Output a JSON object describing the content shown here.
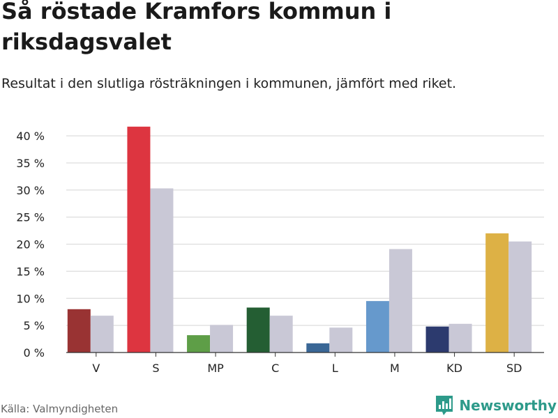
{
  "title": "Så röstade Kramfors kommun i riksdagsvalet",
  "subtitle": "Resultat i den slutliga rösträkningen i kommunen, jämfört med riket.",
  "source": "Källa: Valmyndigheten",
  "brand": "Newsworthy",
  "colors": {
    "brand": "#2d9a8a",
    "grid": "#dddddd",
    "axis": "#333333",
    "national": "#c9c8d6"
  },
  "chart_data": {
    "type": "bar",
    "categories": [
      "V",
      "S",
      "MP",
      "C",
      "L",
      "M",
      "KD",
      "SD"
    ],
    "series": [
      {
        "name": "Kramfors kommun",
        "values": [
          8.0,
          41.7,
          3.2,
          8.3,
          1.7,
          9.5,
          4.8,
          22.0
        ],
        "colors": [
          "#993333",
          "#dd3540",
          "#5e9e47",
          "#245e33",
          "#3a6796",
          "#6699cc",
          "#2c3a6e",
          "#ddb145"
        ]
      },
      {
        "name": "Riket",
        "values": [
          6.8,
          30.3,
          5.1,
          6.8,
          4.6,
          19.1,
          5.3,
          20.5
        ],
        "color": "#c9c8d6"
      }
    ],
    "y_ticks": [
      "0 %",
      "5 %",
      "10 %",
      "15 %",
      "20 %",
      "25 %",
      "30 %",
      "35 %",
      "40 %"
    ],
    "y_tick_values": [
      0,
      5,
      10,
      15,
      20,
      25,
      30,
      35,
      40
    ],
    "ylim": [
      0,
      42
    ],
    "xlabel": "",
    "ylabel": "",
    "grid": true
  }
}
